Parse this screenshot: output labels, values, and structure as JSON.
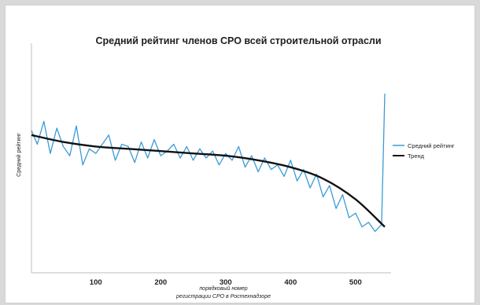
{
  "chart_data": {
    "type": "line",
    "title": "Средний рейтинг членов СРО всей строительной отрасли",
    "xlabel_line1": "порядковый номер",
    "xlabel_line2": "регистрации СРО в Ростехнадзоре",
    "ylabel": "Средний рейтинг",
    "xlim": [
      1,
      545
    ],
    "x_ticks": [
      "100",
      "200",
      "300",
      "400",
      "500"
    ],
    "grid": false,
    "legend_position": "right",
    "colors": {
      "rating": "#3a9bd5",
      "trend": "#111111"
    },
    "series": [
      {
        "name": "Средний рейтинг",
        "x": [
          1,
          10,
          20,
          30,
          40,
          50,
          60,
          70,
          80,
          90,
          100,
          110,
          120,
          130,
          140,
          150,
          160,
          170,
          180,
          190,
          200,
          210,
          220,
          230,
          240,
          250,
          260,
          270,
          280,
          290,
          300,
          310,
          320,
          330,
          340,
          350,
          360,
          370,
          380,
          390,
          400,
          410,
          420,
          430,
          440,
          450,
          460,
          470,
          480,
          490,
          500,
          510,
          520,
          530,
          540,
          545
        ],
        "values": [
          0.62,
          0.56,
          0.66,
          0.52,
          0.63,
          0.55,
          0.51,
          0.64,
          0.47,
          0.54,
          0.52,
          0.56,
          0.6,
          0.49,
          0.56,
          0.55,
          0.48,
          0.57,
          0.5,
          0.58,
          0.51,
          0.53,
          0.56,
          0.5,
          0.55,
          0.49,
          0.54,
          0.5,
          0.53,
          0.47,
          0.52,
          0.49,
          0.55,
          0.46,
          0.51,
          0.44,
          0.5,
          0.45,
          0.47,
          0.42,
          0.49,
          0.4,
          0.45,
          0.37,
          0.43,
          0.33,
          0.38,
          0.28,
          0.34,
          0.24,
          0.26,
          0.2,
          0.22,
          0.18,
          0.21,
          0.78
        ]
      },
      {
        "name": "Тренд",
        "x": [
          1,
          50,
          100,
          150,
          200,
          250,
          300,
          350,
          400,
          450,
          500,
          545
        ],
        "values": [
          0.6,
          0.57,
          0.55,
          0.54,
          0.53,
          0.52,
          0.51,
          0.49,
          0.46,
          0.41,
          0.32,
          0.2
        ]
      }
    ]
  }
}
